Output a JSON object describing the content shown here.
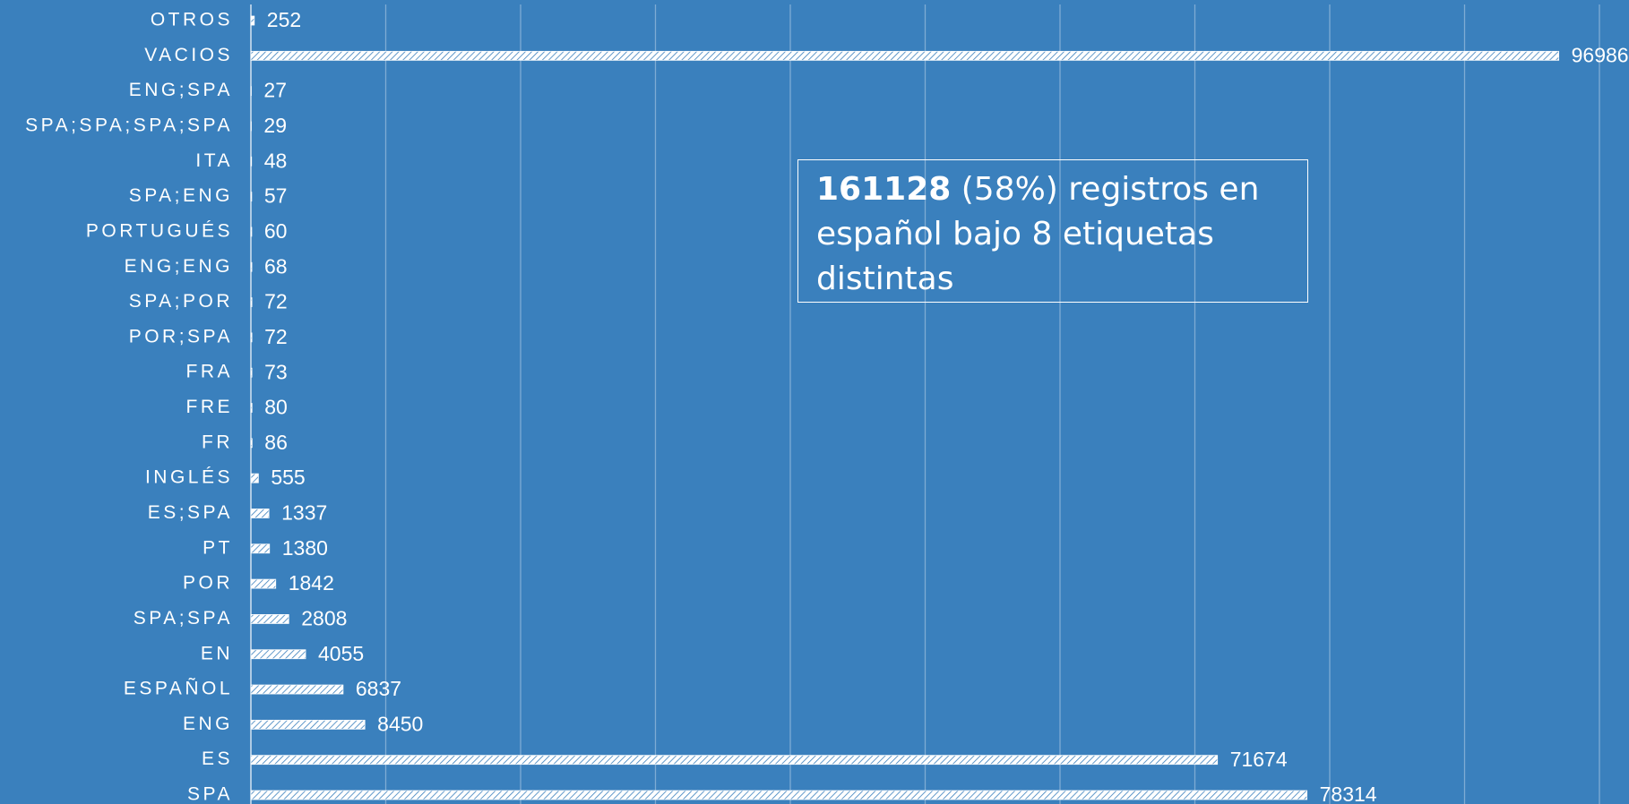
{
  "chart_data": {
    "type": "barh",
    "categories": [
      "OTROS",
      "VACIOS",
      "ENG;SPA",
      "SPA;SPA;SPA;SPA",
      "ITA",
      "SPA;ENG",
      "PORTUGUÉS",
      "ENG;ENG",
      "SPA;POR",
      "POR;SPA",
      "FRA",
      "FRE",
      "FR",
      "INGLÉS",
      "ES;SPA",
      "PT",
      "POR",
      "SPA;SPA",
      "EN",
      "ESPAÑOL",
      "ENG",
      "ES",
      "SPA"
    ],
    "values": [
      252,
      96986,
      27,
      29,
      48,
      57,
      60,
      68,
      72,
      72,
      73,
      80,
      86,
      555,
      1337,
      1380,
      1842,
      2808,
      4055,
      6837,
      8450,
      71674,
      78314
    ],
    "color": "#ffffff",
    "xlim": [
      0,
      100000
    ],
    "xticks": [
      0,
      10000,
      20000,
      30000,
      40000,
      50000,
      60000,
      70000,
      80000,
      90000,
      100000
    ],
    "grid": true,
    "annotation": {
      "bold": "161128",
      "text": "(58%) registros en español bajo 8 etiquetas distintas"
    }
  }
}
